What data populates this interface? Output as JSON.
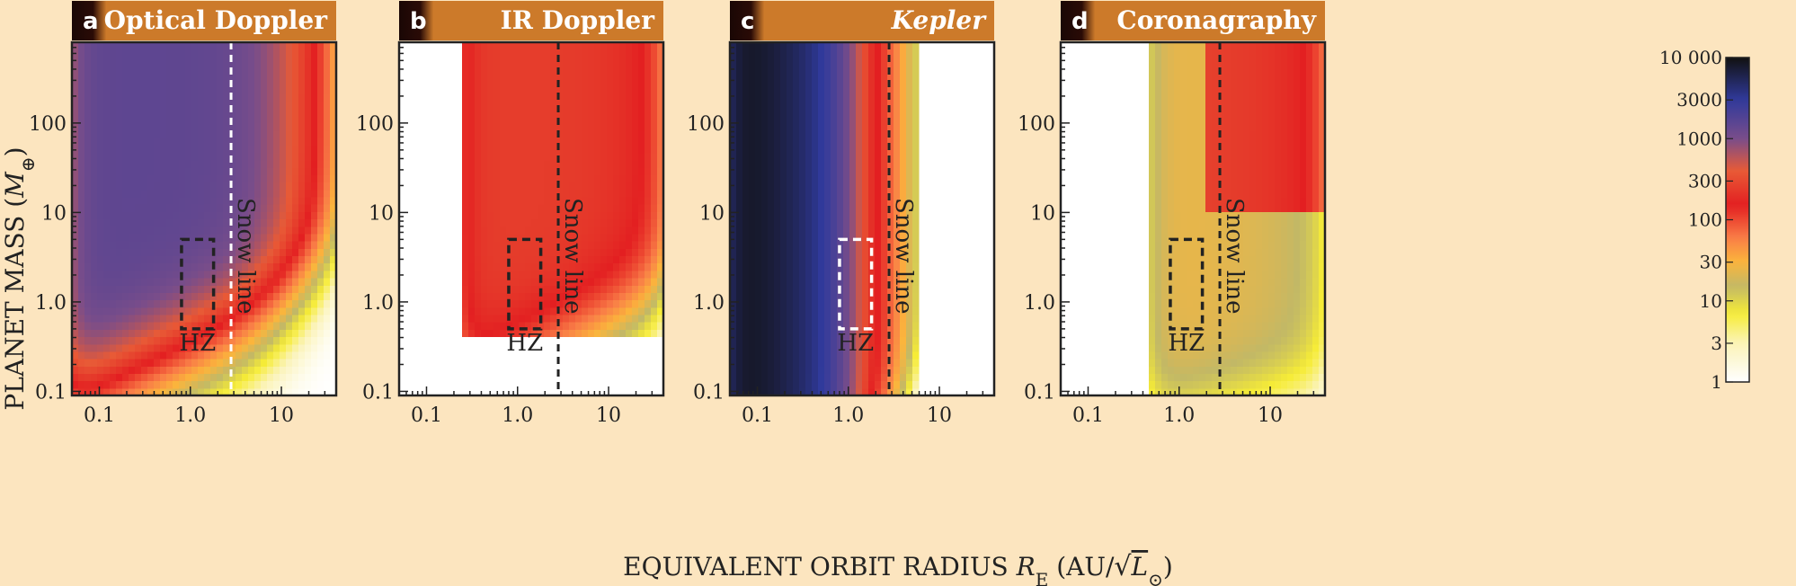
{
  "chart_data": {
    "type": "heatmap",
    "xlabel_main": "EQUIVALENT ORBIT RADIUS ",
    "xlabel_var": "R",
    "xlabel_sub": "E",
    "xlabel_unit_open": " (AU/",
    "xlabel_unit_var": "L",
    "xlabel_unit_sub": "⊙",
    "xlabel_unit_close": ")",
    "ylabel_main": "PLANET MASS (",
    "ylabel_var": "M",
    "ylabel_sub": "⊕",
    "ylabel_close": ")",
    "x_range": [
      0.05,
      40
    ],
    "y_range": [
      0.09,
      800
    ],
    "x_ticks": [
      {
        "value": 0.1,
        "label": "0.1"
      },
      {
        "value": 1,
        "label": "1.0"
      },
      {
        "value": 10,
        "label": "10"
      }
    ],
    "y_ticks": [
      {
        "value": 0.1,
        "label": "0.1"
      },
      {
        "value": 1,
        "label": "1.0"
      },
      {
        "value": 10,
        "label": "10"
      },
      {
        "value": 100,
        "label": "100"
      }
    ],
    "habitable_zone": {
      "label": "HZ",
      "x_range": [
        0.8,
        1.8
      ],
      "y_range": [
        0.5,
        5
      ]
    },
    "snow_line": {
      "label": "Snow line",
      "x": 2.8
    },
    "colorbar": {
      "range": [
        1,
        10000
      ],
      "ticks": [
        {
          "value": 10000,
          "label": "10 000"
        },
        {
          "value": 3000,
          "label": "3000"
        },
        {
          "value": 1000,
          "label": "1000"
        },
        {
          "value": 300,
          "label": "300"
        },
        {
          "value": 100,
          "label": "100"
        },
        {
          "value": 30,
          "label": "30"
        },
        {
          "value": 10,
          "label": "10"
        },
        {
          "value": 3,
          "label": "3"
        },
        {
          "value": 1,
          "label": "1"
        }
      ],
      "stops": [
        {
          "v": 1,
          "color": "#ffffff"
        },
        {
          "v": 3,
          "color": "#fbf3b8"
        },
        {
          "v": 7,
          "color": "#f6ec36"
        },
        {
          "v": 15,
          "color": "#c2b866"
        },
        {
          "v": 30,
          "color": "#fbb53c"
        },
        {
          "v": 60,
          "color": "#f97d47"
        },
        {
          "v": 150,
          "color": "#e31f21"
        },
        {
          "v": 400,
          "color": "#e85a36"
        },
        {
          "v": 1000,
          "color": "#794d8a"
        },
        {
          "v": 3000,
          "color": "#303a9c"
        },
        {
          "v": 10000,
          "color": "#111111"
        }
      ]
    },
    "panels": [
      {
        "letter": "a",
        "title": "Optical Doppler",
        "italic": false,
        "peak": 1500,
        "x_min": 0.05,
        "x_max": 40,
        "y_min": 0.09,
        "mass_threshold_at_1au": 0.55,
        "mass_slope": 0.5,
        "outer_radius": 8,
        "x_steepness": 4,
        "snow_line_color": "#ffffff",
        "hz_color": "#222222"
      },
      {
        "letter": "b",
        "title": "IR Doppler",
        "italic": false,
        "peak": 250,
        "x_min": 0.25,
        "x_max": 40,
        "y_min": 0.4,
        "mass_threshold_at_1au": 0.22,
        "mass_slope": 0.5,
        "outer_radius": 40,
        "x_steepness": 3,
        "snow_line_color": "#222222",
        "hz_color": "#222222"
      },
      {
        "letter": "c",
        "title": "Kepler",
        "italic": true,
        "peak": 10000,
        "x_min": 0.05,
        "x_max": 6,
        "y_min": 0.09,
        "mass_threshold_at_1au": 0.01,
        "mass_slope": 1.3,
        "outer_radius": 1.2,
        "x_steepness": 5,
        "snow_line_color": "#222222",
        "hz_color": "#ffffff"
      },
      {
        "letter": "d",
        "title": "Coronagraphy",
        "italic": false,
        "peak": 200,
        "x_min": 0.5,
        "x_max": 40,
        "y_min": 0.09,
        "mass_threshold_at_1au": 0.05,
        "mass_slope": 0.2,
        "outer_radius": 40,
        "x_steepness": 2,
        "snow_line_color": "#222222",
        "hz_color": "#222222"
      }
    ]
  }
}
